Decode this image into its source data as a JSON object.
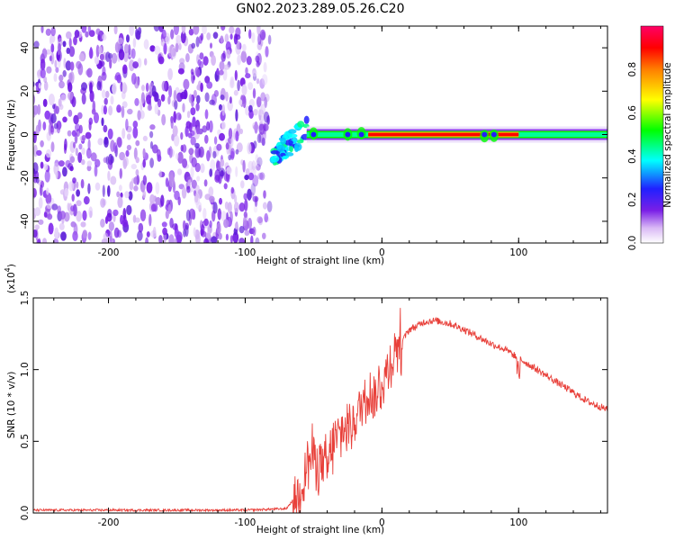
{
  "figure": {
    "title": "GN02.2023.289.05.26.C20"
  },
  "colors": {
    "snr_line": "#e8403a",
    "axes": "#000000",
    "colormap": [
      "#ffffff",
      "#d9b8f5",
      "#7a1fe6",
      "#2020ff",
      "#00ffff",
      "#00ff00",
      "#ffff00",
      "#ff7f00",
      "#ff0000",
      "#ff0066"
    ]
  },
  "chart_data": [
    {
      "type": "heatmap",
      "title": "",
      "xlabel": "Height of straight line (km)",
      "ylabel": "Frequency (Hz)",
      "xlim": [
        -255,
        165
      ],
      "ylim": [
        -50,
        50
      ],
      "xticks": [
        -200,
        -100,
        0,
        100
      ],
      "xtick_labels": [
        "-200",
        "-100",
        "0",
        "100"
      ],
      "yticks": [
        -40,
        -20,
        0,
        20,
        40
      ],
      "ytick_labels": [
        "-40",
        "-20",
        "0",
        "20",
        "40"
      ],
      "colorbar": {
        "label": "Normalized spectral amplitude",
        "range": [
          0,
          1
        ],
        "ticks": [
          0.0,
          0.2,
          0.4,
          0.6,
          0.8
        ],
        "tick_labels": [
          "0.0",
          "0.2",
          "0.4",
          "0.6",
          "0.8"
        ]
      },
      "description_of_signal": {
        "noise_region_x": [
          -255,
          -80
        ],
        "transition_x": [
          -80,
          -55
        ],
        "narrowband_line_frequency": 0,
        "narrowband_line_x": [
          -55,
          165
        ],
        "peak_amplitude_x": [
          -10,
          100
        ]
      },
      "grid": false
    },
    {
      "type": "line",
      "title": "",
      "xlabel": "Height of straight line (km)",
      "ylabel": "SNR (10 * v/v)",
      "y_multiplier": "(x10^4)",
      "y_multiplier_base": "(x10",
      "y_multiplier_exp": "4",
      "y_multiplier_close": ")",
      "xlim": [
        -255,
        165
      ],
      "ylim": [
        0,
        1.5
      ],
      "xticks": [
        -200,
        -100,
        0,
        100
      ],
      "xtick_labels": [
        "-200",
        "-100",
        "0",
        "100"
      ],
      "yticks": [
        0.0,
        0.5,
        1.0,
        1.5
      ],
      "ytick_labels": [
        "0.0",
        "0.5",
        "1.0",
        "1.5"
      ],
      "series": [
        {
          "x": [
            -255,
            -200,
            -150,
            -100,
            -70,
            -60,
            -55,
            -50,
            -45,
            -40,
            -35,
            -30,
            -25,
            -20,
            -15,
            -10,
            -5,
            0,
            5,
            10,
            15,
            20,
            25,
            30,
            35,
            40,
            50,
            60,
            70,
            80,
            90,
            100,
            110,
            120,
            130,
            140,
            150,
            165
          ],
          "values": [
            0.02,
            0.02,
            0.02,
            0.02,
            0.03,
            0.15,
            0.35,
            0.4,
            0.35,
            0.3,
            0.5,
            0.55,
            0.6,
            0.65,
            0.75,
            0.85,
            0.8,
            0.9,
            1.0,
            1.15,
            1.2,
            1.28,
            1.3,
            1.33,
            1.34,
            1.34,
            1.32,
            1.28,
            1.23,
            1.18,
            1.14,
            1.08,
            1.02,
            0.96,
            0.9,
            0.84,
            0.78,
            0.72
          ]
        }
      ],
      "grid": false
    }
  ]
}
